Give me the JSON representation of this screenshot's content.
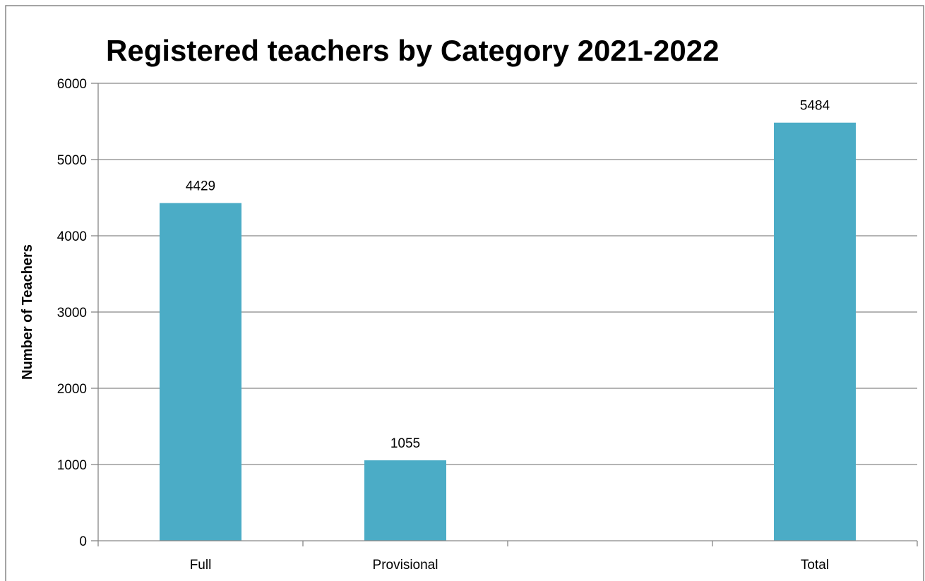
{
  "chart_data": {
    "type": "bar",
    "title": "Registered teachers by Category 2021-2022",
    "xlabel": "",
    "ylabel": "Number of Teachers",
    "categories": [
      "Full",
      "Provisional",
      "",
      "Total"
    ],
    "values": [
      4429,
      1055,
      null,
      5484
    ],
    "data_labels": [
      "4429",
      "1055",
      "",
      "5484"
    ],
    "ylim": [
      0,
      6000
    ],
    "yticks": [
      0,
      1000,
      2000,
      3000,
      4000,
      5000,
      6000
    ],
    "grid": true,
    "legend": "none",
    "colors": {
      "bar": "#4BACC6",
      "grid": "#868686",
      "axis": "#868686",
      "border": "#868686"
    }
  }
}
